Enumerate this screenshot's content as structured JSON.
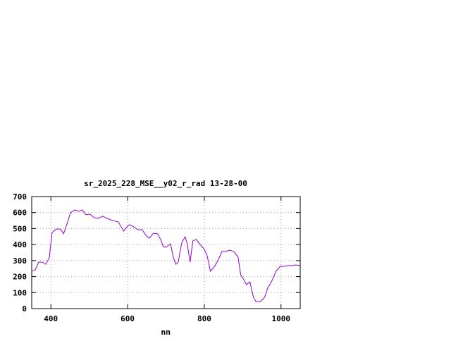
{
  "chart_data": {
    "type": "line",
    "title": "sr_2025_228_MSE__y02_r_rad 13-28-00",
    "x_label": "nm",
    "xlim": [
      350,
      1050
    ],
    "xticks": [
      400,
      600,
      800,
      1000
    ],
    "ylim": [
      0,
      700
    ],
    "yticks": [
      0,
      100,
      200,
      300,
      400,
      500,
      600,
      700
    ],
    "grid": true,
    "series": [
      {
        "color": "#9400d3",
        "x": [
          350,
          359,
          368,
          378,
          387,
          396,
          403,
          414,
          425,
          433,
          442,
          451,
          462,
          473,
          482,
          491,
          502,
          513,
          524,
          535,
          546,
          561,
          576,
          583,
          590,
          598,
          605,
          616,
          627,
          638,
          649,
          657,
          667,
          678,
          686,
          693,
          700,
          712,
          719,
          726,
          732,
          741,
          750,
          755,
          763,
          770,
          779,
          789,
          800,
          807,
          816,
          827,
          837,
          846,
          855,
          866,
          877,
          888,
          895,
          903,
          910,
          919,
          928,
          935,
          946,
          957,
          966,
          975,
          987,
          998,
          1009,
          1020,
          1031,
          1038,
          1050
        ],
        "values": [
          233,
          242,
          290,
          290,
          277,
          321,
          475,
          497,
          497,
          467,
          528,
          599,
          616,
          608,
          616,
          586,
          590,
          568,
          564,
          577,
          564,
          550,
          542,
          511,
          484,
          511,
          524,
          511,
          493,
          493,
          454,
          440,
          471,
          467,
          432,
          387,
          383,
          405,
          321,
          277,
          290,
          410,
          449,
          410,
          290,
          423,
          432,
          401,
          370,
          335,
          233,
          264,
          308,
          357,
          357,
          365,
          357,
          321,
          211,
          181,
          150,
          167,
          70,
          44,
          44,
          70,
          132,
          167,
          233,
          264,
          264,
          269,
          269,
          273,
          269
        ]
      }
    ]
  }
}
